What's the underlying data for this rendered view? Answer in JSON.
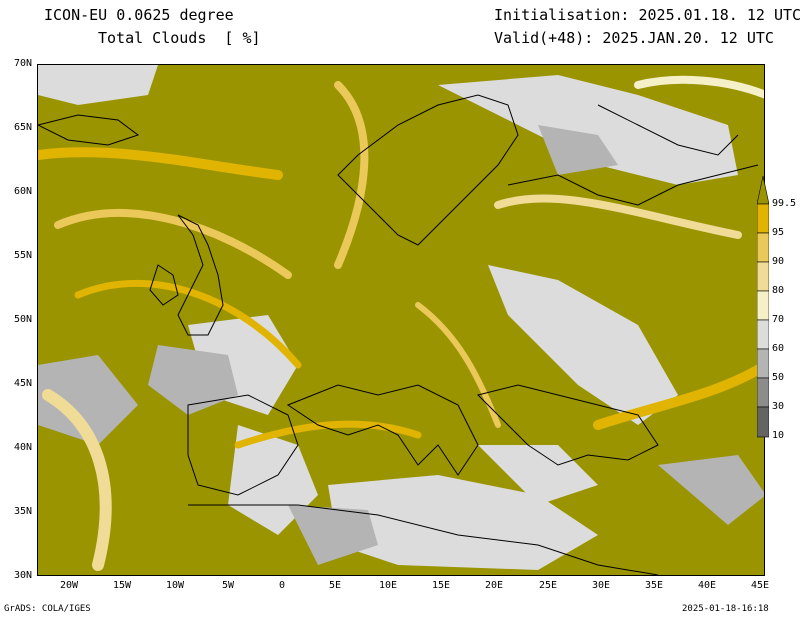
{
  "header": {
    "model": "ICON-EU 0.0625 degree",
    "variable": "Total Clouds  [ %]",
    "init": "Initialisation: 2025.01.18. 12 UTC",
    "valid": "Valid(+48): 2025.JAN.20. 12 UTC"
  },
  "axes": {
    "lat_labels": [
      "70N",
      "65N",
      "60N",
      "55N",
      "50N",
      "45N",
      "40N",
      "35N",
      "30N"
    ],
    "lon_labels": [
      "20W",
      "15W",
      "10W",
      "5W",
      "0",
      "5E",
      "10E",
      "15E",
      "20E",
      "25E",
      "30E",
      "35E",
      "40E",
      "45E"
    ],
    "lat_range": [
      30,
      70
    ],
    "lon_range": [
      -25,
      45
    ]
  },
  "colorbar": {
    "labels": [
      "99.5",
      "95",
      "90",
      "80",
      "70",
      "60",
      "50",
      "30",
      "10"
    ],
    "colors": {
      "full": "#9a9400",
      "c95": "#e0b400",
      "c90": "#ebc85a",
      "c80": "#f0dc96",
      "c70": "#f5f0c8",
      "c60": "#dcdcdc",
      "c50": "#b4b4b4",
      "c30": "#8c8c8c",
      "c10": "#646464"
    }
  },
  "footer": {
    "credit": "GrADS: COLA/IGES",
    "stamp": "2025-01-18-16:18"
  }
}
